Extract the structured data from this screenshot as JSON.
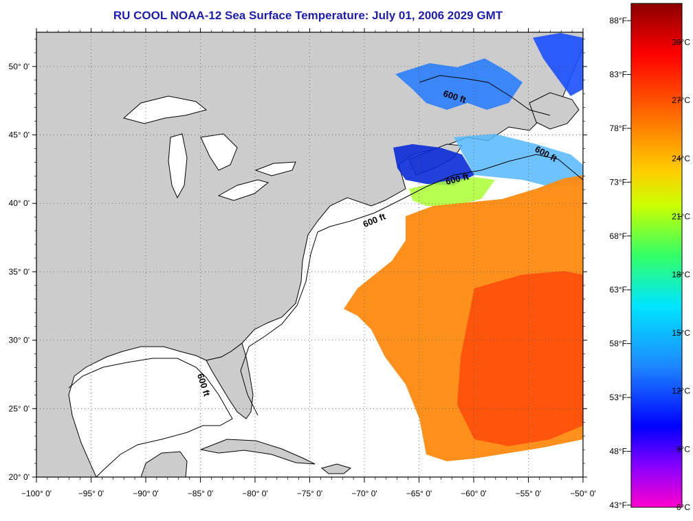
{
  "title": "RU COOL  NOAA-12  Sea Surface Temperature:  July 01, 2006 2029 GMT",
  "map": {
    "lon_range": [
      -100,
      -50
    ],
    "lat_range": [
      20,
      52.5
    ],
    "lon_ticks": [
      {
        "value": -100,
        "label": "−100° 0'"
      },
      {
        "value": -95,
        "label": "−95° 0'"
      },
      {
        "value": -90,
        "label": "−90° 0'"
      },
      {
        "value": -85,
        "label": "−85° 0'"
      },
      {
        "value": -80,
        "label": "−80° 0'"
      },
      {
        "value": -75,
        "label": "−75° 0'"
      },
      {
        "value": -70,
        "label": "−70° 0'"
      },
      {
        "value": -65,
        "label": "−65° 0'"
      },
      {
        "value": -60,
        "label": "−60° 0'"
      },
      {
        "value": -55,
        "label": "−55° 0'"
      },
      {
        "value": -50,
        "label": "−50° 0'"
      }
    ],
    "lat_ticks": [
      {
        "value": 20,
        "label": "20° 0'"
      },
      {
        "value": 25,
        "label": "25° 0'"
      },
      {
        "value": 30,
        "label": "30° 0'"
      },
      {
        "value": 35,
        "label": "35° 0'"
      },
      {
        "value": 40,
        "label": "40° 0'"
      },
      {
        "value": 45,
        "label": "45° 0'"
      },
      {
        "value": 50,
        "label": "50° 0'"
      }
    ],
    "contour_label": "600 ft",
    "colors": {
      "land": "#cccccc",
      "ocean": "#ffffff",
      "coast": "#000000",
      "grid": "#555555",
      "title": "#1c1cb4"
    }
  },
  "colorbar": {
    "celsius_range": [
      6,
      32
    ],
    "fahrenheit_labels": [
      "88°F",
      "83°F",
      "78°F",
      "73°F",
      "68°F",
      "63°F",
      "58°F",
      "53°F",
      "48°F",
      "43°F"
    ],
    "celsius_labels": [
      "30°C",
      "27°C",
      "24°C",
      "21°C",
      "18°C",
      "15°C",
      "12°C",
      "9°C",
      "6°C"
    ],
    "celsius_values": [
      30,
      27,
      24,
      21,
      18,
      15,
      12,
      9,
      6
    ],
    "gradient": [
      {
        "offset": 0.0,
        "color": "#8b0000"
      },
      {
        "offset": 0.1,
        "color": "#ff0000"
      },
      {
        "offset": 0.22,
        "color": "#ff6a00"
      },
      {
        "offset": 0.33,
        "color": "#ffcc00"
      },
      {
        "offset": 0.4,
        "color": "#ccff00"
      },
      {
        "offset": 0.5,
        "color": "#33ff66"
      },
      {
        "offset": 0.6,
        "color": "#00e5ff"
      },
      {
        "offset": 0.72,
        "color": "#1e88ff"
      },
      {
        "offset": 0.84,
        "color": "#0000ff"
      },
      {
        "offset": 0.92,
        "color": "#8a00ff"
      },
      {
        "offset": 1.0,
        "color": "#ff00cc"
      }
    ]
  }
}
